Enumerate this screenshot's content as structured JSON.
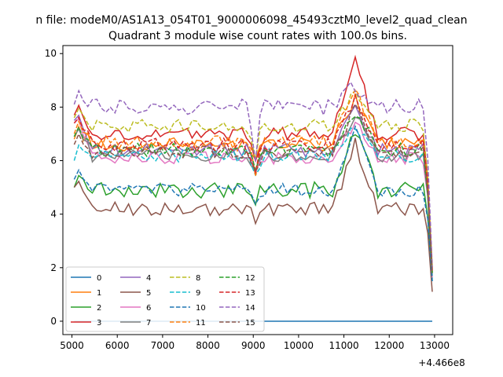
{
  "figure": {
    "suptitle": "n file: modeM0/AS1A13_054T01_9000006098_45493cztM0_level2_quad_clean",
    "offset_text": "+4.466e8"
  },
  "chart_data": {
    "type": "line",
    "title": "Quadrant 3 module wise count rates with 100.0s bins.",
    "xlabel": "",
    "ylabel": "",
    "xlim": [
      4800,
      13400
    ],
    "ylim": [
      -0.5,
      10.3
    ],
    "x_offset": 446600000,
    "x_ticks": [
      5000,
      6000,
      7000,
      8000,
      9000,
      10000,
      11000,
      12000,
      13000
    ],
    "x_tick_labels": [
      "5000",
      "6000",
      "7000",
      "8000",
      "9000",
      "10000",
      "11000",
      "12000",
      "13000"
    ],
    "y_ticks": [
      0,
      2,
      4,
      6,
      8,
      10
    ],
    "y_tick_labels": [
      "0",
      "2",
      "4",
      "6",
      "8",
      "10"
    ],
    "grid": false,
    "legend_position": "lower-left",
    "legend_columns": 4,
    "x": [
      5050,
      12950
    ],
    "series": [
      {
        "name": "0",
        "color": "#1f77b4",
        "style": "solid",
        "values": [
          0,
          0
        ]
      },
      {
        "name": "1",
        "color": "#ff7f0e",
        "style": "solid",
        "base": 6.6,
        "amp": 0.25,
        "start": 6.8,
        "peak": 8.4,
        "trough": 6.0,
        "end": 1.8
      },
      {
        "name": "2",
        "color": "#2ca02c",
        "style": "solid",
        "base": 4.9,
        "amp": 0.3,
        "start": 5.0,
        "peak": 7.1,
        "trough": 4.5,
        "end": 1.6
      },
      {
        "name": "3",
        "color": "#d62728",
        "style": "solid",
        "base": 7.0,
        "amp": 0.25,
        "start": 7.7,
        "peak": 9.7,
        "trough": 5.8,
        "end": 1.9
      },
      {
        "name": "4",
        "color": "#9467bd",
        "style": "solid",
        "base": 6.4,
        "amp": 0.25,
        "start": 7.5,
        "peak": 8.1,
        "trough": 5.5,
        "end": 1.8
      },
      {
        "name": "5",
        "color": "#8c564b",
        "style": "solid",
        "base": 4.2,
        "amp": 0.25,
        "start": 5.0,
        "peak": 6.6,
        "trough": 3.8,
        "end": 1.1
      },
      {
        "name": "6",
        "color": "#e377c2",
        "style": "solid",
        "base": 6.1,
        "amp": 0.25,
        "start": 7.4,
        "peak": 7.4,
        "trough": 5.4,
        "end": 1.6
      },
      {
        "name": "7",
        "color": "#7f7f7f",
        "style": "solid",
        "base": 6.2,
        "amp": 0.25,
        "start": 6.9,
        "peak": 7.8,
        "trough": 5.6,
        "end": 1.7
      },
      {
        "name": "8",
        "color": "#bcbd22",
        "style": "dashed",
        "base": 7.3,
        "amp": 0.25,
        "start": 7.6,
        "peak": 8.5,
        "trough": 6.2,
        "end": 2.0
      },
      {
        "name": "9",
        "color": "#17becf",
        "style": "dashed",
        "base": 6.2,
        "amp": 0.25,
        "start": 6.0,
        "peak": 7.3,
        "trough": 5.3,
        "end": 1.5
      },
      {
        "name": "10",
        "color": "#1f77b4",
        "style": "dashed",
        "base": 4.9,
        "amp": 0.25,
        "start": 5.3,
        "peak": 7.1,
        "trough": 4.4,
        "end": 1.5
      },
      {
        "name": "11",
        "color": "#ff7f0e",
        "style": "dashed",
        "base": 6.7,
        "amp": 0.25,
        "start": 7.0,
        "peak": 8.7,
        "trough": 5.6,
        "end": 1.8
      },
      {
        "name": "12",
        "color": "#2ca02c",
        "style": "dashed",
        "base": 6.4,
        "amp": 0.25,
        "start": 6.9,
        "peak": 7.9,
        "trough": 5.5,
        "end": 1.8
      },
      {
        "name": "13",
        "color": "#d62728",
        "style": "dashed",
        "base": 6.6,
        "amp": 0.25,
        "start": 7.4,
        "peak": 8.4,
        "trough": 5.6,
        "end": 1.9
      },
      {
        "name": "14",
        "color": "#9467bd",
        "style": "dashed",
        "base": 8.0,
        "amp": 0.3,
        "start": 8.1,
        "peak": 8.8,
        "trough": 6.2,
        "end": 2.0
      },
      {
        "name": "15",
        "color": "#8c564b",
        "style": "dashed",
        "base": 6.3,
        "amp": 0.25,
        "start": 6.6,
        "peak": 8.0,
        "trough": 5.5,
        "end": 1.8
      }
    ]
  }
}
